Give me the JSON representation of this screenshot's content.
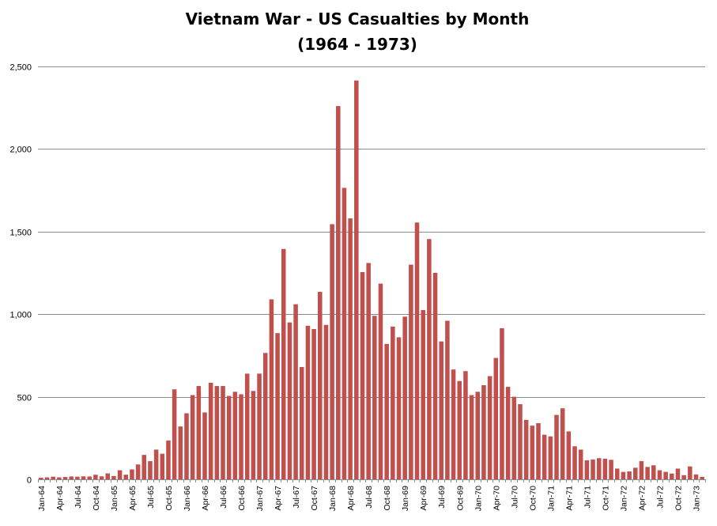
{
  "chart_data": {
    "type": "bar",
    "title": "Vietnam War - US Casualties by Month",
    "subtitle": "(1964 - 1973)",
    "xlabel": "",
    "ylabel": "",
    "ylim": [
      0,
      2500
    ],
    "yticks": [
      0,
      500,
      1000,
      1500,
      2000,
      2500
    ],
    "ytick_labels": [
      "0",
      "500",
      "1,000",
      "1,500",
      "2,000",
      "2,500"
    ],
    "grid": true,
    "legend": "none",
    "bar_color": "#c0504d",
    "xtick_labels": [
      "Jan-64",
      "Apr-64",
      "Jul-64",
      "Oct-64",
      "Jan-65",
      "Apr-65",
      "Jul-65",
      "Oct-65",
      "Jan-66",
      "Apr-66",
      "Jul-66",
      "Oct-66",
      "Jan-67",
      "Apr-67",
      "Jul-67",
      "Oct-67",
      "Jan-68",
      "Apr-68",
      "Jul-68",
      "Oct-68",
      "Jan-69",
      "Apr-69",
      "Jul-69",
      "Oct-69",
      "Jan-70",
      "Apr-70",
      "Jul-70",
      "Oct-70",
      "Jan-71",
      "Apr-71",
      "Jul-71",
      "Oct-71",
      "Jan-72",
      "Apr-72",
      "Jul-72",
      "Oct-72",
      "Jan-73"
    ],
    "categories": [
      "Jan-64",
      "Feb-64",
      "Mar-64",
      "Apr-64",
      "May-64",
      "Jun-64",
      "Jul-64",
      "Aug-64",
      "Sep-64",
      "Oct-64",
      "Nov-64",
      "Dec-64",
      "Jan-65",
      "Feb-65",
      "Mar-65",
      "Apr-65",
      "May-65",
      "Jun-65",
      "Jul-65",
      "Aug-65",
      "Sep-65",
      "Oct-65",
      "Nov-65",
      "Dec-65",
      "Jan-66",
      "Feb-66",
      "Mar-66",
      "Apr-66",
      "May-66",
      "Jun-66",
      "Jul-66",
      "Aug-66",
      "Sep-66",
      "Oct-66",
      "Nov-66",
      "Dec-66",
      "Jan-67",
      "Feb-67",
      "Mar-67",
      "Apr-67",
      "May-67",
      "Jun-67",
      "Jul-67",
      "Aug-67",
      "Sep-67",
      "Oct-67",
      "Nov-67",
      "Dec-67",
      "Jan-68",
      "Feb-68",
      "Mar-68",
      "Apr-68",
      "May-68",
      "Jun-68",
      "Jul-68",
      "Aug-68",
      "Sep-68",
      "Oct-68",
      "Nov-68",
      "Dec-68",
      "Jan-69",
      "Feb-69",
      "Mar-69",
      "Apr-69",
      "May-69",
      "Jun-69",
      "Jul-69",
      "Aug-69",
      "Sep-69",
      "Oct-69",
      "Nov-69",
      "Dec-69",
      "Jan-70",
      "Feb-70",
      "Mar-70",
      "Apr-70",
      "May-70",
      "Jun-70",
      "Jul-70",
      "Aug-70",
      "Sep-70",
      "Oct-70",
      "Nov-70",
      "Dec-70",
      "Jan-71",
      "Feb-71",
      "Mar-71",
      "Apr-71",
      "May-71",
      "Jun-71",
      "Jul-71",
      "Aug-71",
      "Sep-71",
      "Oct-71",
      "Nov-71",
      "Dec-71",
      "Jan-72",
      "Feb-72",
      "Mar-72",
      "Apr-72",
      "May-72",
      "Jun-72",
      "Jul-72",
      "Aug-72",
      "Sep-72",
      "Oct-72",
      "Nov-72",
      "Dec-72",
      "Jan-73",
      "Feb-73"
    ],
    "values": [
      10,
      12,
      16,
      12,
      14,
      17,
      16,
      18,
      17,
      28,
      18,
      36,
      20,
      55,
      28,
      60,
      90,
      148,
      110,
      180,
      155,
      235,
      545,
      320,
      400,
      510,
      565,
      405,
      585,
      565,
      565,
      505,
      530,
      515,
      640,
      535,
      640,
      765,
      1090,
      885,
      1395,
      950,
      1060,
      680,
      930,
      910,
      1135,
      935,
      1545,
      2260,
      1765,
      1580,
      2415,
      1255,
      1310,
      990,
      1185,
      820,
      925,
      860,
      985,
      1300,
      1555,
      1025,
      1455,
      1250,
      835,
      960,
      665,
      595,
      655,
      510,
      530,
      570,
      625,
      735,
      915,
      560,
      500,
      455,
      360,
      325,
      340,
      270,
      260,
      390,
      430,
      290,
      200,
      180,
      115,
      120,
      128,
      125,
      118,
      65,
      45,
      48,
      70,
      110,
      75,
      85,
      55,
      45,
      35,
      65,
      25,
      78,
      30,
      15
    ]
  }
}
